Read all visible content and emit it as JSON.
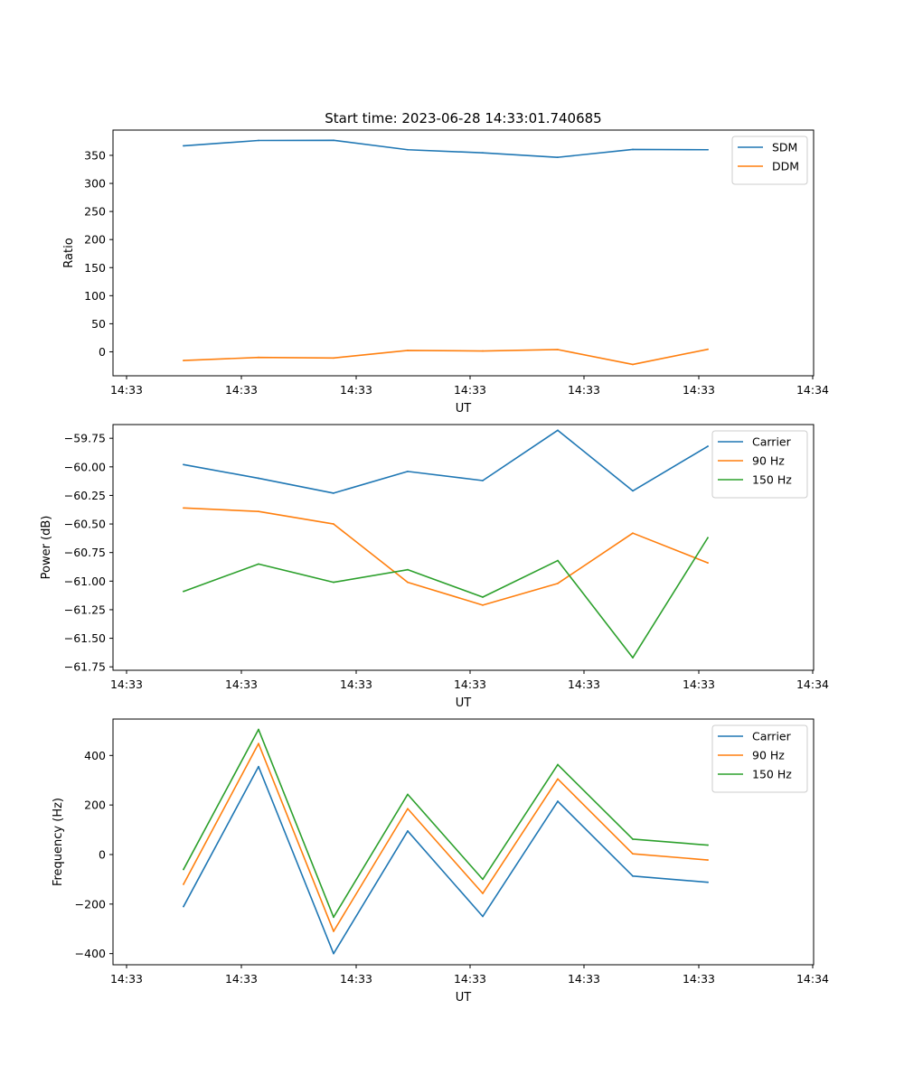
{
  "figure": {
    "title": "Start time: 2023-06-28 14:33:01.740685"
  },
  "chart_data": [
    {
      "type": "line",
      "xlabel": "UT",
      "ylabel": "Ratio",
      "x_tick_labels": [
        "14:33",
        "14:33",
        "14:33",
        "14:33",
        "14:33",
        "14:33",
        "14:34"
      ],
      "ylim": [
        -42.7,
        395
      ],
      "y_ticks": [
        0,
        50,
        100,
        150,
        200,
        250,
        300,
        350
      ],
      "legend_position": "top-right",
      "series": [
        {
          "name": "SDM",
          "color": "#1f77b4",
          "values": [
            367,
            376.5,
            376.8,
            360,
            354.5,
            346.5,
            360.5,
            360
          ]
        },
        {
          "name": "DDM",
          "color": "#ff7f0e",
          "values": [
            -15.5,
            -10,
            -11,
            2.5,
            1.5,
            4,
            -22.5,
            4.5
          ]
        }
      ]
    },
    {
      "type": "line",
      "xlabel": "UT",
      "ylabel": "Power (dB)",
      "x_tick_labels": [
        "14:33",
        "14:33",
        "14:33",
        "14:33",
        "14:33",
        "14:33",
        "14:34"
      ],
      "ylim": [
        -61.78,
        -59.63
      ],
      "y_ticks": [
        -61.75,
        -61.5,
        -61.25,
        -61.0,
        -60.75,
        -60.5,
        -60.25,
        -60.0,
        -59.75
      ],
      "y_tick_labels": [
        "−61.75",
        "−61.50",
        "−61.25",
        "−61.00",
        "−60.75",
        "−60.50",
        "−60.25",
        "−60.00",
        "−59.75"
      ],
      "legend_position": "top-right",
      "series": [
        {
          "name": "Carrier",
          "color": "#1f77b4",
          "values": [
            -59.98,
            -60.1,
            -60.23,
            -60.04,
            -60.12,
            -59.68,
            -60.21,
            -59.82
          ]
        },
        {
          "name": "90 Hz",
          "color": "#ff7f0e",
          "values": [
            -60.36,
            -60.39,
            -60.5,
            -61.01,
            -61.21,
            -61.02,
            -60.58,
            -60.84
          ]
        },
        {
          "name": "150 Hz",
          "color": "#2ca02c",
          "values": [
            -61.09,
            -60.85,
            -61.01,
            -60.9,
            -61.14,
            -60.82,
            -61.67,
            -60.62
          ]
        }
      ]
    },
    {
      "type": "line",
      "xlabel": "UT",
      "ylabel": "Frequency (Hz)",
      "x_tick_labels": [
        "14:33",
        "14:33",
        "14:33",
        "14:33",
        "14:33",
        "14:33",
        "14:34"
      ],
      "ylim": [
        -445,
        547
      ],
      "y_ticks": [
        -400,
        -200,
        0,
        200,
        400
      ],
      "y_tick_labels": [
        "−400",
        "−200",
        "0",
        "200",
        "400"
      ],
      "legend_position": "top-right",
      "series": [
        {
          "name": "Carrier",
          "color": "#1f77b4",
          "values": [
            -210,
            355,
            -400,
            95,
            -250,
            215,
            -87,
            -112
          ]
        },
        {
          "name": "90 Hz",
          "color": "#ff7f0e",
          "values": [
            -120,
            448,
            -310,
            185,
            -157,
            305,
            3,
            -22
          ]
        },
        {
          "name": "150 Hz",
          "color": "#2ca02c",
          "values": [
            -60,
            505,
            -253,
            243,
            -100,
            363,
            62,
            38
          ]
        }
      ]
    }
  ]
}
